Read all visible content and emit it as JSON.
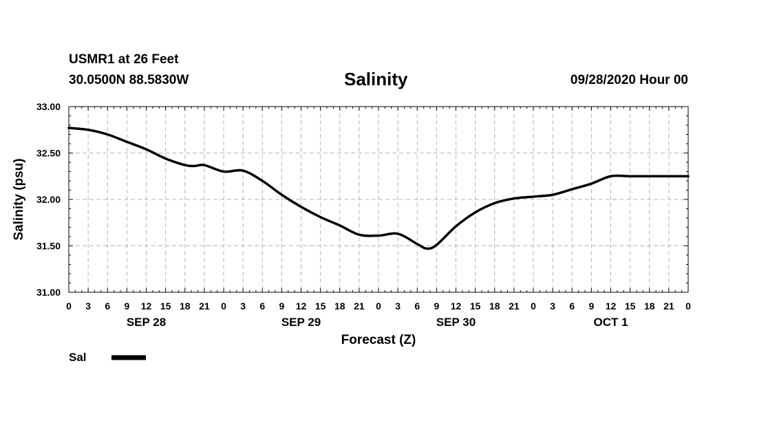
{
  "header": {
    "station": "USMR1 at 26 Feet",
    "coords": "30.0500N 88.5830W",
    "title": "Salinity",
    "datetime": "09/28/2020 Hour 00"
  },
  "chart_data": {
    "type": "line",
    "title": "Salinity",
    "xlabel": "Forecast (Z)",
    "ylabel": "Salinity (psu)",
    "xlim": [
      0,
      96
    ],
    "ylim": [
      31.0,
      33.0
    ],
    "yticks": [
      "31.00",
      "31.50",
      "32.00",
      "32.50",
      "33.00"
    ],
    "ytick_values": [
      31.0,
      31.5,
      32.0,
      32.5,
      33.0
    ],
    "xtick_hours": [
      0,
      3,
      6,
      9,
      12,
      15,
      18,
      21,
      24,
      27,
      30,
      33,
      36,
      39,
      42,
      45,
      48,
      51,
      54,
      57,
      60,
      63,
      66,
      69,
      72,
      75,
      78,
      81,
      84,
      87,
      90,
      93,
      96
    ],
    "xtick_labels": [
      "0",
      "3",
      "6",
      "9",
      "12",
      "15",
      "18",
      "21",
      "0",
      "3",
      "6",
      "9",
      "12",
      "15",
      "18",
      "21",
      "0",
      "3",
      "6",
      "9",
      "12",
      "15",
      "18",
      "21",
      "0",
      "3",
      "6",
      "9",
      "12",
      "15",
      "18",
      "21",
      "0"
    ],
    "day_labels": [
      {
        "label": "SEP 28",
        "hour": 12
      },
      {
        "label": "SEP 29",
        "hour": 36
      },
      {
        "label": "SEP 30",
        "hour": 60
      },
      {
        "label": "OCT 1",
        "hour": 84
      }
    ],
    "grid": true,
    "legend_position": "bottom-left",
    "series": [
      {
        "name": "Sal",
        "color": "#000000",
        "x": [
          0,
          3,
          6,
          9,
          12,
          15,
          18,
          19.5,
          21,
          24,
          27,
          30,
          33,
          36,
          39,
          42,
          45,
          48,
          51,
          54,
          55.5,
          57,
          60,
          63,
          66,
          69,
          72,
          75,
          78,
          81,
          84,
          87,
          90,
          93,
          96
        ],
        "y": [
          32.77,
          32.75,
          32.7,
          32.62,
          32.54,
          32.44,
          32.37,
          32.36,
          32.37,
          32.3,
          32.31,
          32.2,
          32.05,
          31.92,
          31.81,
          31.72,
          31.62,
          31.61,
          31.63,
          31.52,
          31.47,
          31.51,
          31.71,
          31.86,
          31.96,
          32.01,
          32.03,
          32.05,
          32.11,
          32.17,
          32.25,
          32.25,
          32.25,
          32.25,
          32.25
        ]
      }
    ]
  },
  "legend": {
    "label": "Sal"
  }
}
